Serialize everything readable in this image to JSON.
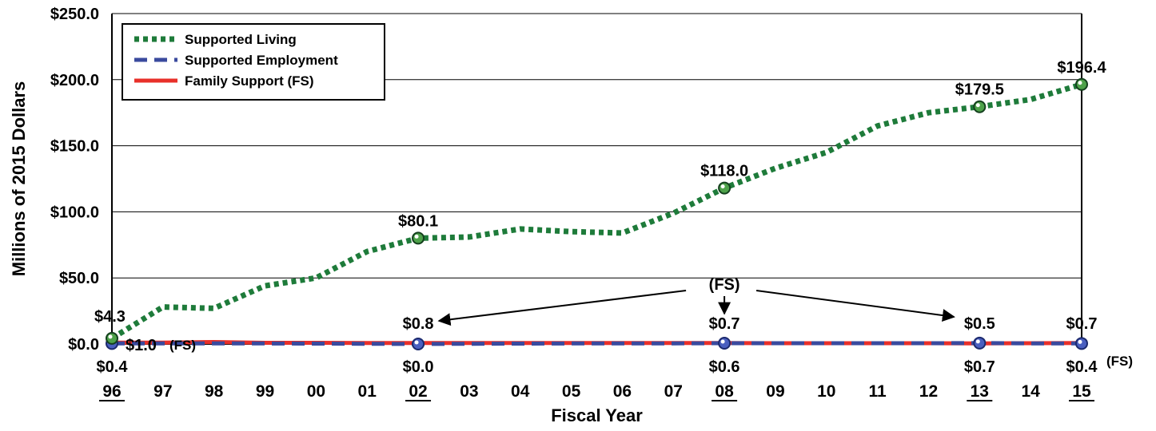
{
  "chart_data": {
    "type": "line",
    "xlabel": "Fiscal Year",
    "ylabel": "Millions of 2015 Dollars",
    "ylim": [
      0,
      250
    ],
    "yticks": [
      "$0.0",
      "$50.0",
      "$100.0",
      "$150.0",
      "$200.0",
      "$250.0"
    ],
    "categories": [
      "96",
      "97",
      "98",
      "99",
      "00",
      "01",
      "02",
      "03",
      "04",
      "05",
      "06",
      "07",
      "08",
      "09",
      "10",
      "11",
      "12",
      "13",
      "14",
      "15"
    ],
    "underlined_categories": [
      "96",
      "02",
      "08",
      "13",
      "15"
    ],
    "grid": "horizontal",
    "legend_position": "top-left",
    "series": [
      {
        "name": "Supported Living",
        "color": "#1e7b3a",
        "style": "dotted",
        "values": [
          4.3,
          28,
          27,
          44,
          50,
          70,
          80.1,
          81,
          87,
          85,
          84,
          99,
          118.0,
          133,
          145,
          165,
          175,
          179.5,
          185,
          196.4
        ]
      },
      {
        "name": "Supported Employment",
        "color": "#3a4a9e",
        "style": "dashed",
        "values": [
          0.4,
          0.5,
          0.5,
          0.4,
          0.3,
          0.2,
          0.0,
          0.2,
          0.3,
          0.4,
          0.5,
          0.5,
          0.6,
          0.6,
          0.6,
          0.6,
          0.6,
          0.7,
          0.5,
          0.4
        ]
      },
      {
        "name": "Family Support (FS)",
        "color": "#e8302a",
        "style": "solid",
        "values": [
          1.0,
          1.0,
          1.5,
          0.9,
          0.9,
          0.8,
          0.8,
          0.8,
          0.7,
          0.7,
          0.7,
          0.7,
          0.7,
          0.6,
          0.6,
          0.6,
          0.6,
          0.5,
          0.6,
          0.7
        ]
      }
    ],
    "annotations": {
      "supported_living": [
        {
          "index": 0,
          "text": "$4.3"
        },
        {
          "index": 6,
          "text": "$80.1"
        },
        {
          "index": 12,
          "text": "$118.0"
        },
        {
          "index": 17,
          "text": "$179.5"
        },
        {
          "index": 19,
          "text": "$196.4"
        }
      ],
      "family_support": [
        {
          "index": 0,
          "text": "$1.0"
        },
        {
          "index": 6,
          "text": "$0.8"
        },
        {
          "index": 12,
          "text": "$0.7"
        },
        {
          "index": 17,
          "text": "$0.5"
        },
        {
          "index": 19,
          "text": "$0.7"
        }
      ],
      "supported_employment": [
        {
          "index": 0,
          "text": "$0.4"
        },
        {
          "index": 6,
          "text": "$0.0"
        },
        {
          "index": 12,
          "text": "$0.6"
        },
        {
          "index": 17,
          "text": "$0.7"
        },
        {
          "index": 19,
          "text": "$0.4"
        }
      ],
      "fs_marker": "(FS)"
    }
  }
}
